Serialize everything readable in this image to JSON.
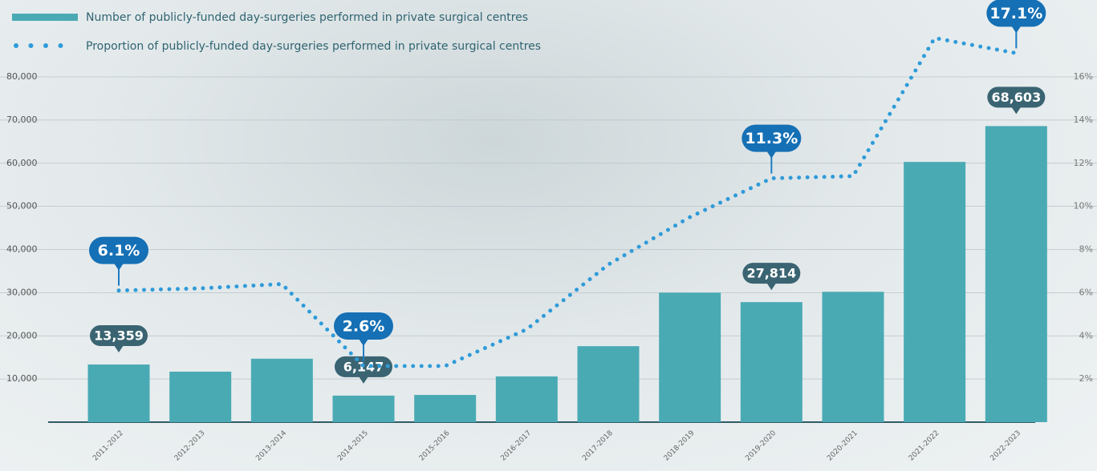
{
  "chart_data": {
    "type": "bar",
    "categories": [
      "2011-2012",
      "2012-2013",
      "2013-2014",
      "2014-2015",
      "2015-2016",
      "2016-2017",
      "2017-2018",
      "2018-2019",
      "2019-2020",
      "2020-2021",
      "2021-2022",
      "2022-2023"
    ],
    "series": [
      {
        "name": "Number of publicly-funded day-surgeries performed in private surgical centres",
        "type": "bar",
        "color": "#4aaab4",
        "values": [
          13359,
          11700,
          14700,
          6147,
          6300,
          10600,
          17600,
          30000,
          27814,
          30200,
          60300,
          68603
        ],
        "value_labels": [
          "13,359",
          null,
          null,
          "6,147",
          null,
          null,
          null,
          null,
          "27,814",
          null,
          null,
          "68,603"
        ]
      },
      {
        "name": "Proportion of publicly-funded day-surgeries performed in private surgical centres",
        "type": "line",
        "axis": "y2",
        "color": "#2f9bd9",
        "values": [
          6.1,
          6.2,
          6.4,
          2.6,
          2.6,
          4.3,
          7.3,
          9.5,
          11.3,
          11.4,
          17.8,
          17.1
        ],
        "value_labels": [
          "6.1%",
          null,
          null,
          "2.6%",
          null,
          null,
          null,
          null,
          "11.3%",
          null,
          null,
          "17.1%"
        ]
      }
    ],
    "ylim": [
      0,
      80000
    ],
    "yticks": [
      {
        "value": 10000,
        "label": "10,000"
      },
      {
        "value": 20000,
        "label": "20,000"
      },
      {
        "value": 30000,
        "label": "30,000"
      },
      {
        "value": 40000,
        "label": "40,000"
      },
      {
        "value": 50000,
        "label": "50,000"
      },
      {
        "value": 60000,
        "label": "60,000"
      },
      {
        "value": 70000,
        "label": "70,000"
      },
      {
        "value": 80000,
        "label": "80,000"
      }
    ],
    "y2lim": [
      0,
      16
    ],
    "y2ticks": [
      {
        "value": 2,
        "label": "2%"
      },
      {
        "value": 4,
        "label": "4%"
      },
      {
        "value": 6,
        "label": "6%"
      },
      {
        "value": 8,
        "label": "8%"
      },
      {
        "value": 10,
        "label": "10%"
      },
      {
        "value": 12,
        "label": "12%"
      },
      {
        "value": 14,
        "label": "14%"
      },
      {
        "value": 16,
        "label": "16%"
      }
    ],
    "grid": true
  }
}
